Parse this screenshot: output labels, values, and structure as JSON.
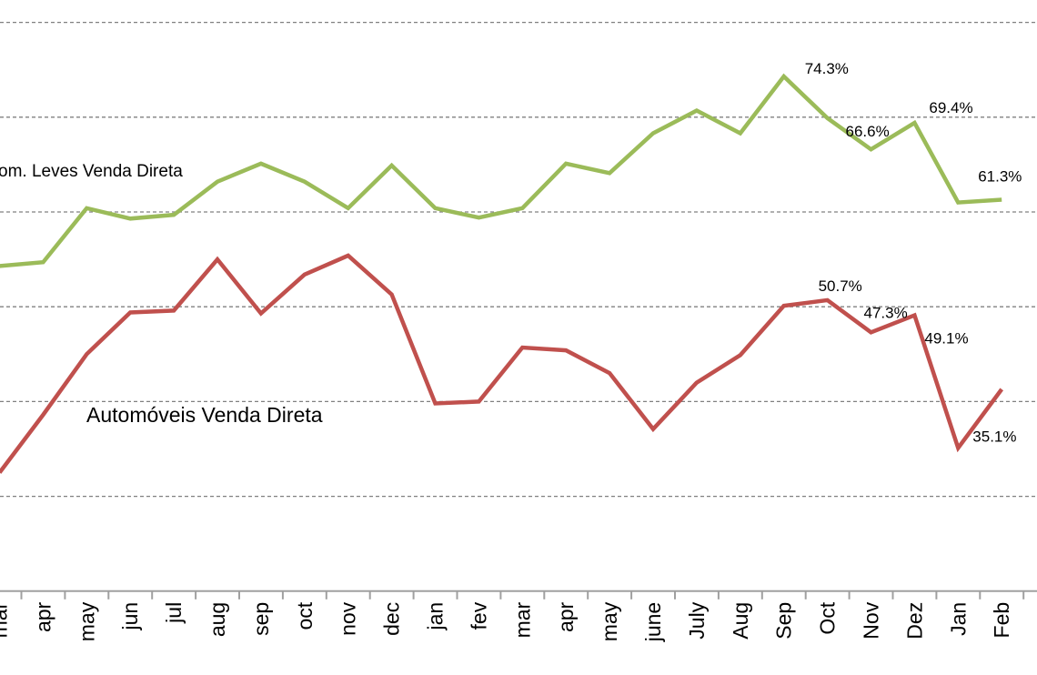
{
  "chart_data": {
    "type": "line",
    "categories": [
      "mar",
      "apr",
      "may",
      "jun",
      "jul",
      "aug",
      "sep",
      "oct",
      "nov",
      "dec",
      "jan",
      "fev",
      "mar",
      "apr",
      "may",
      "june",
      "July",
      "Aug",
      "Sep",
      "Oct",
      "Nov",
      "Dez",
      "Jan",
      "Feb"
    ],
    "ylim": [
      20,
      80
    ],
    "grid": true,
    "legend": "inline labels",
    "series": [
      {
        "name": "om. Leves Venda Direta",
        "color": "#9bbb59",
        "values": [
          54.3,
          54.7,
          60.4,
          59.3,
          59.7,
          63.2,
          65.1,
          63.2,
          60.4,
          64.9,
          60.4,
          59.4,
          60.4,
          65.1,
          64.1,
          68.3,
          70.7,
          68.3,
          74.3,
          69.9,
          66.6,
          69.4,
          61.0,
          61.3
        ],
        "data_labels": {
          "18": "74.3%",
          "20": "66.6%",
          "21": "69.4%",
          "23": "61.3%"
        }
      },
      {
        "name": "Automóveis Venda Direta",
        "color": "#c0504d",
        "values": [
          32.5,
          38.6,
          45.0,
          49.4,
          49.6,
          55.0,
          49.3,
          53.4,
          55.4,
          51.3,
          39.8,
          40.0,
          45.7,
          45.4,
          43.0,
          37.1,
          42.0,
          44.9,
          50.1,
          50.7,
          47.3,
          49.1,
          35.1,
          41.3
        ],
        "data_labels": {
          "19": "50.7%",
          "20": "47.3%",
          "21": "49.1%",
          "22": "35.1%"
        }
      }
    ]
  }
}
